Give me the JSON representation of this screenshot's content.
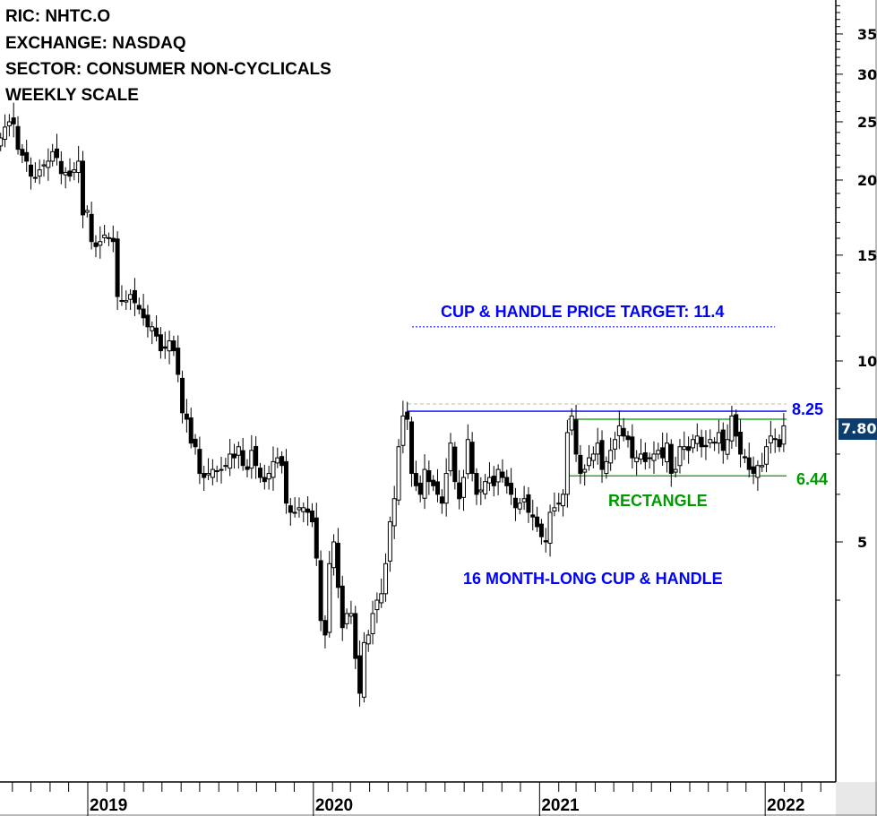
{
  "header": {
    "ric": "RIC: NHTC.O",
    "exchange": "EXCHANGE: NASDAQ",
    "sector": "SECTOR: CONSUMER NON-CYCLICALS",
    "scale": "WEEKLY SCALE"
  },
  "annotations": {
    "target": "CUP & HANDLE PRICE TARGET: 11.4",
    "pattern": "16 MONTH-LONG CUP & HANDLE",
    "rectangle": "RECTANGLE",
    "resistance_label": "8.25",
    "support_label": "6.44",
    "last_price": "7.800"
  },
  "colors": {
    "blue": "#0000ff",
    "green": "#009900",
    "price_tag": "#0b3d6e",
    "up_candle": "#ffffff",
    "down_candle": "#000000"
  },
  "chart_data": {
    "type": "candlestick",
    "y_scale": "log",
    "ylim": [
      2.3,
      40
    ],
    "y_ticks": [
      5,
      10,
      15,
      20,
      25,
      30,
      35
    ],
    "x_ticks": [
      "2019",
      "2020",
      "2021",
      "2022"
    ],
    "frequency": "weekly",
    "x_start": "2018-08-13",
    "close": [
      23.5,
      24.5,
      25,
      24.8,
      22.5,
      22,
      21.5,
      20.3,
      20.2,
      20.8,
      21.2,
      21.5,
      22.3,
      21.8,
      20.5,
      20.6,
      20.3,
      20.8,
      21.5,
      17.5,
      17.8,
      15.8,
      15.5,
      15.8,
      16.2,
      16.0,
      15.8,
      12.8,
      12.6,
      12.6,
      12.9,
      12.5,
      12.2,
      11.8,
      11.4,
      11.4,
      11.0,
      10.4,
      10.5,
      10.8,
      10.4,
      9.5,
      8.2,
      8.0,
      7.3,
      7.2,
      6.5,
      6.4,
      6.5,
      6.6,
      6.55,
      6.6,
      6.7,
      7.0,
      6.9,
      7.2,
      6.7,
      6.6,
      7.1,
      6.7,
      6.4,
      6.3,
      6.5,
      6.8,
      6.9,
      6.7,
      5.8,
      5.6,
      5.6,
      5.7,
      5.7,
      5.6,
      5.4,
      4.7,
      3.7,
      3.5,
      4.6,
      5.0,
      4.2,
      3.6,
      3.8,
      3.8,
      3.2,
      2.8,
      3.4,
      3.5,
      3.8,
      4.0,
      4.1,
      4.6,
      5.4,
      5.9,
      7.2,
      8.1,
      8.0,
      6.5,
      6.2,
      6.0,
      6.6,
      6.3,
      6.2,
      6.0,
      5.8,
      6.5,
      7.3,
      6.3,
      5.9,
      6.4,
      7.4,
      6.5,
      6.0,
      6.1,
      6.3,
      6.4,
      6.2,
      6.6,
      6.4,
      6.2,
      6.0,
      5.7,
      5.8,
      5.9,
      5.6,
      5.5,
      5.3,
      5.1,
      5.0,
      5.6,
      5.7,
      5.8,
      6.0,
      7.6,
      8.1,
      7.0,
      6.5,
      6.6,
      6.9,
      7.0,
      7.3,
      6.6,
      6.8,
      7.1,
      7.4,
      7.8,
      7.5,
      7.4,
      6.9,
      6.9,
      7.0,
      6.8,
      6.9,
      7.0,
      7.1,
      6.9,
      7.3,
      6.5,
      6.6,
      7.2,
      7.2,
      7.1,
      7.4,
      7.5,
      7.2,
      7.2,
      7.4,
      7.3,
      7.6,
      7.1,
      7.4,
      8.1,
      7.5,
      7.0,
      6.9,
      6.6,
      6.5,
      6.7,
      6.7,
      7.2,
      7.5,
      7.4,
      7.2,
      7.8
    ],
    "levels": {
      "cup_handle_resistance": 8.25,
      "rectangle_top": 8.0,
      "rectangle_support": 6.44,
      "price_target": 11.4,
      "prior_high": 8.48
    }
  }
}
